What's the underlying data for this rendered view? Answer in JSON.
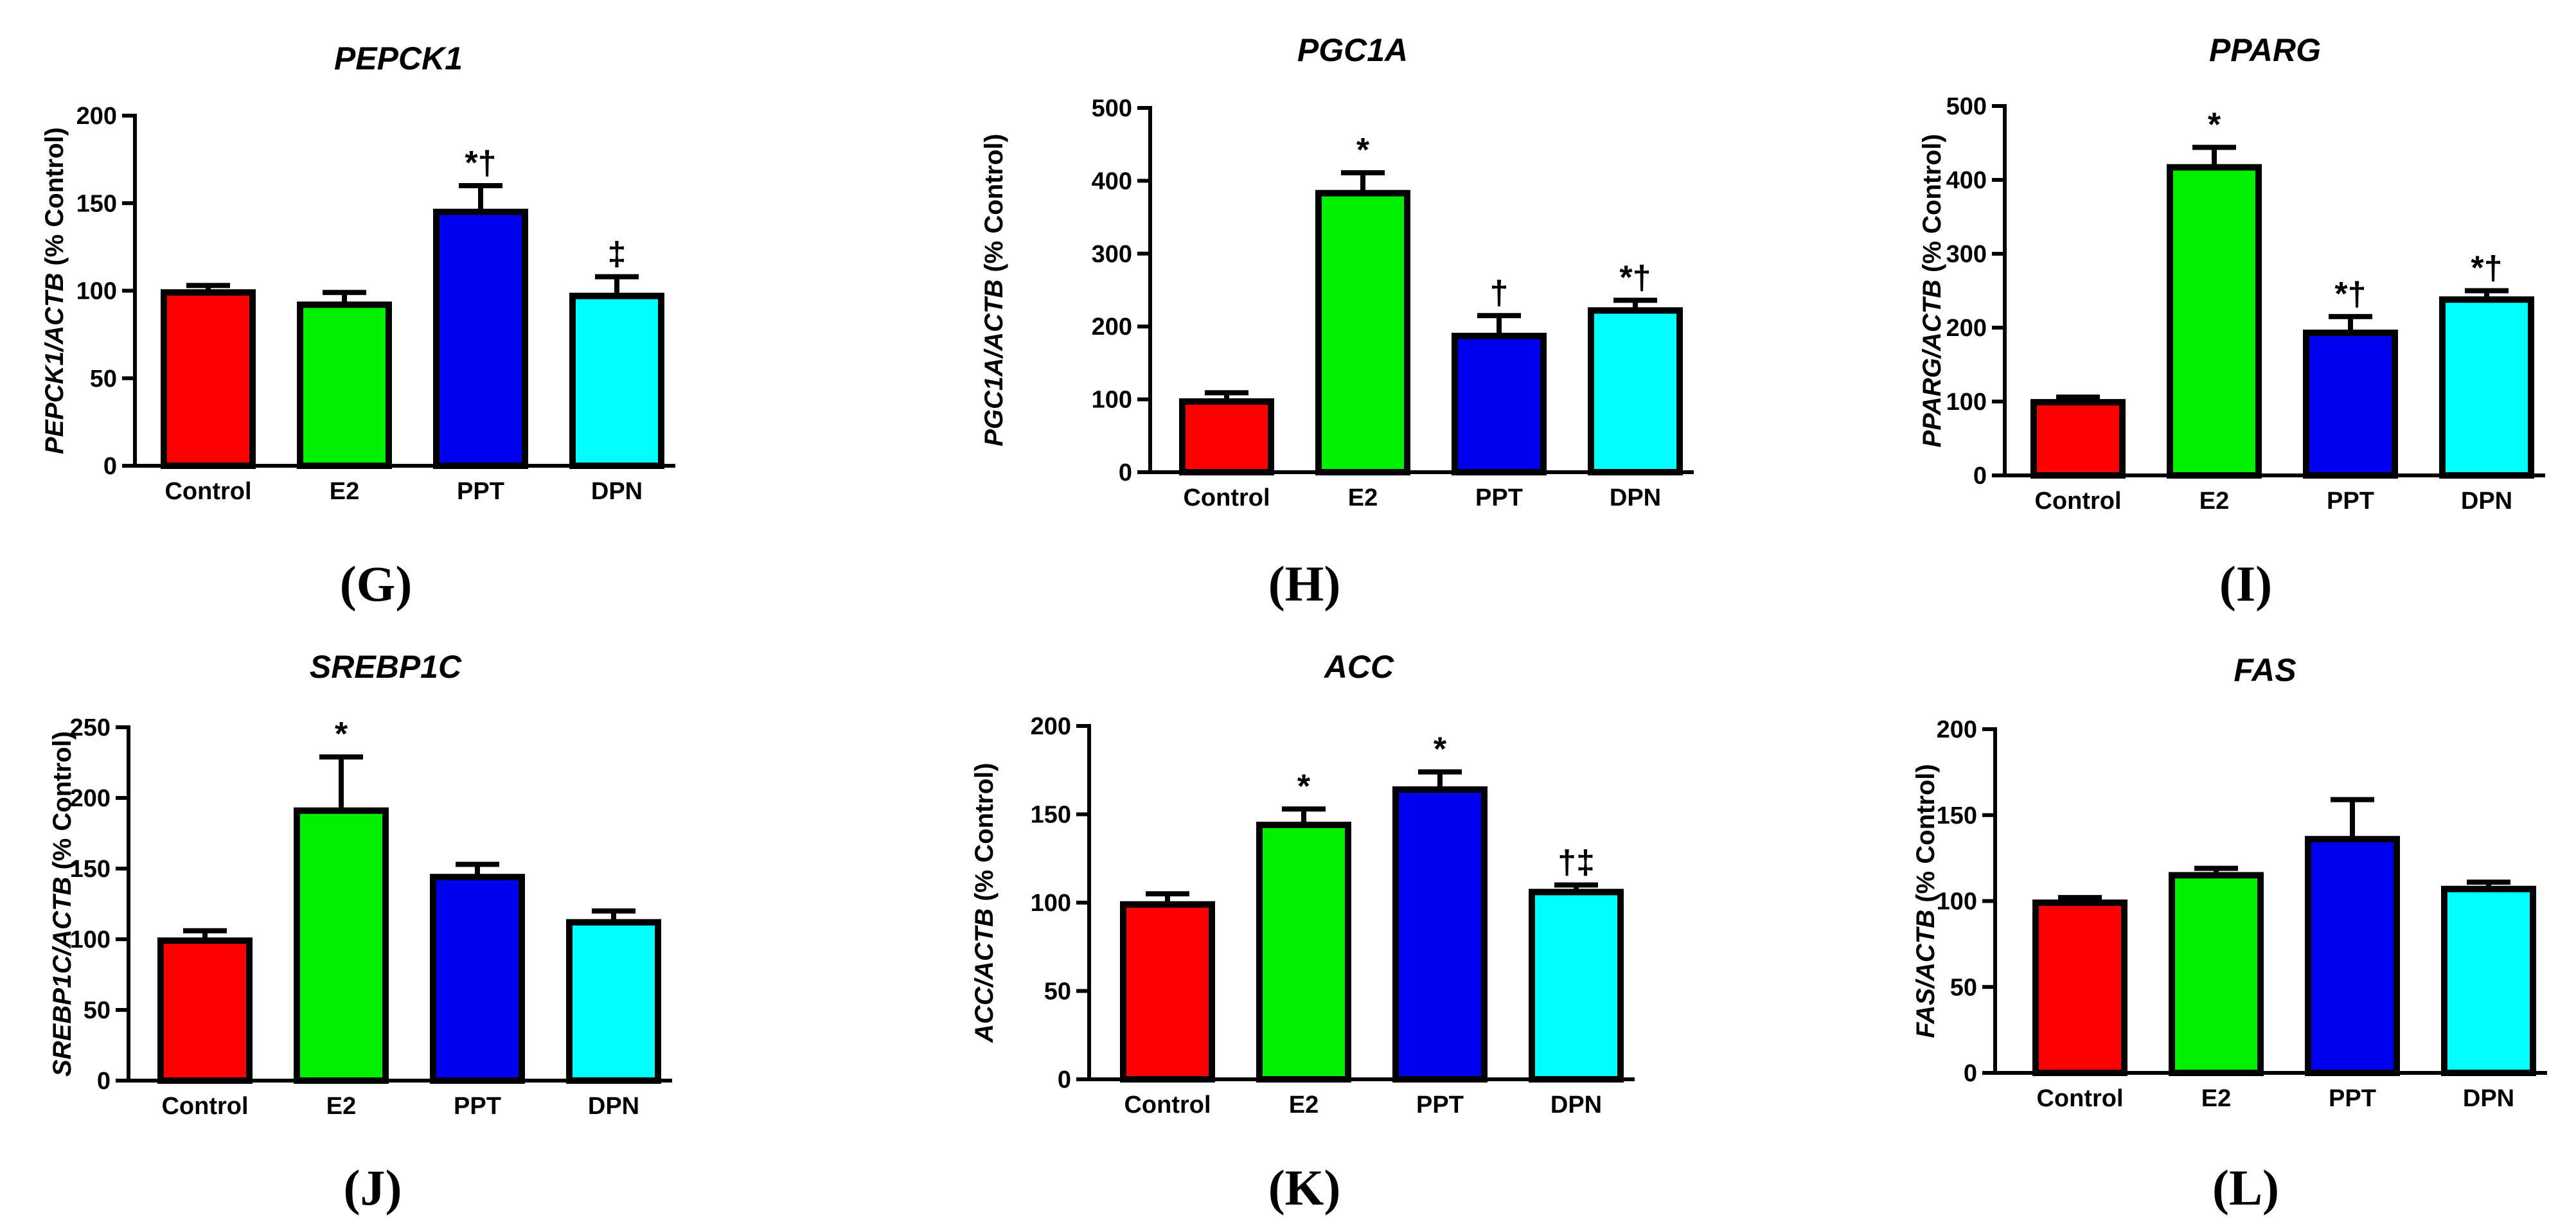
{
  "colors": {
    "Control": "#ff0000",
    "E2": "#00ee00",
    "PPT": "#0000f0",
    "DPN": "#00ffff",
    "outline": "#000000"
  },
  "chart_data": [
    {
      "type": "bar",
      "panel": "(G)",
      "title": "PEPCK1",
      "ylabel_italic": "PEPCK1/ACTB",
      "ylabel_rest": " (% Control)",
      "ylim": [
        0,
        200
      ],
      "yticks": [
        0,
        50,
        100,
        150,
        200
      ],
      "categories": [
        "Control",
        "E2",
        "PPT",
        "DPN"
      ],
      "values": [
        99,
        92,
        145,
        97
      ],
      "errors": [
        4,
        7,
        15,
        11
      ],
      "significance": [
        "",
        "",
        "*†",
        "‡"
      ]
    },
    {
      "type": "bar",
      "panel": "(H)",
      "title": "PGC1A",
      "ylabel_italic": "PGC1A/ACTB",
      "ylabel_rest": " (% Control)",
      "ylim": [
        0,
        500
      ],
      "yticks": [
        0,
        100,
        200,
        300,
        400,
        500
      ],
      "categories": [
        "Control",
        "E2",
        "PPT",
        "DPN"
      ],
      "values": [
        97,
        383,
        187,
        222
      ],
      "errors": [
        12,
        28,
        28,
        14
      ],
      "significance": [
        "",
        "*",
        "†",
        "*†"
      ]
    },
    {
      "type": "bar",
      "panel": "(I)",
      "title": "PPARG",
      "ylabel_italic": "PPARG/ACTB",
      "ylabel_rest": " (% Control)",
      "ylim": [
        0,
        500
      ],
      "yticks": [
        0,
        100,
        200,
        300,
        400,
        500
      ],
      "categories": [
        "Control",
        "E2",
        "PPT",
        "DPN"
      ],
      "values": [
        99,
        417,
        193,
        238
      ],
      "errors": [
        7,
        27,
        22,
        12
      ],
      "significance": [
        "",
        "*",
        "*†",
        "*†"
      ]
    },
    {
      "type": "bar",
      "panel": "(J)",
      "title": "SREBP1C",
      "ylabel_italic": "SREBP1C/ACTB",
      "ylabel_rest": " (% Control)",
      "ylim": [
        0,
        250
      ],
      "yticks": [
        0,
        50,
        100,
        150,
        200,
        250
      ],
      "categories": [
        "Control",
        "E2",
        "PPT",
        "DPN"
      ],
      "values": [
        99,
        191,
        144,
        112
      ],
      "errors": [
        7,
        38,
        9,
        8
      ],
      "significance": [
        "",
        "*",
        "",
        ""
      ]
    },
    {
      "type": "bar",
      "panel": "(K)",
      "title": "ACC",
      "ylabel_italic": "ACC/ACTB",
      "ylabel_rest": " (% Control)",
      "ylim": [
        0,
        200
      ],
      "yticks": [
        0,
        50,
        100,
        150,
        200
      ],
      "categories": [
        "Control",
        "E2",
        "PPT",
        "DPN"
      ],
      "values": [
        99,
        144,
        164,
        106
      ],
      "errors": [
        6,
        9,
        10,
        4
      ],
      "significance": [
        "",
        "*",
        "*",
        "†‡"
      ]
    },
    {
      "type": "bar",
      "panel": "(L)",
      "title": "FAS",
      "ylabel_italic": "FAS/ACTB",
      "ylabel_rest": " (% Control)",
      "ylim": [
        0,
        200
      ],
      "yticks": [
        0,
        50,
        100,
        150,
        200
      ],
      "categories": [
        "Control",
        "E2",
        "PPT",
        "DPN"
      ],
      "values": [
        99,
        115,
        136,
        107
      ],
      "errors": [
        3,
        4,
        23,
        4
      ],
      "significance": [
        "",
        "",
        "",
        ""
      ]
    }
  ]
}
